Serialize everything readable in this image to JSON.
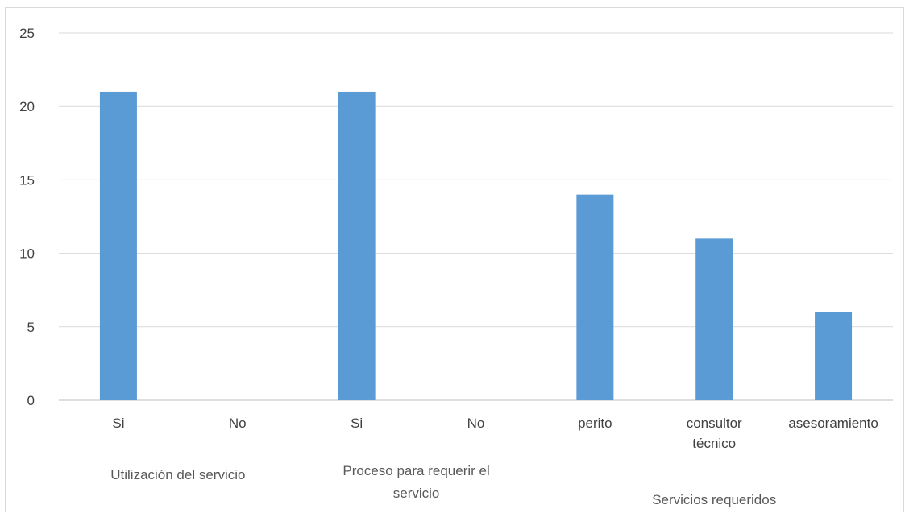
{
  "chart_data": {
    "type": "bar",
    "title": "",
    "xlabel": "",
    "ylabel": "",
    "ylim": [
      0,
      25
    ],
    "yticks": [
      0,
      5,
      10,
      15,
      20,
      25
    ],
    "grid": true,
    "legend": "none",
    "bar_color": "#5b9bd5",
    "categories": [
      "Si",
      "No",
      "Si",
      "No",
      "perito",
      "consultor técnico",
      "asesoramiento"
    ],
    "category_lines": [
      [
        "Si"
      ],
      [
        "No"
      ],
      [
        "Si"
      ],
      [
        "No"
      ],
      [
        "perito"
      ],
      [
        "consultor",
        "técnico"
      ],
      [
        "asesoramiento"
      ]
    ],
    "values": [
      21,
      0,
      21,
      0,
      14,
      11,
      6
    ],
    "groups": [
      {
        "label_lines": [
          "Utilización del servicio"
        ],
        "first": 0,
        "last": 1
      },
      {
        "label_lines": [
          "Proceso para requerir el",
          "servicio"
        ],
        "first": 2,
        "last": 3
      },
      {
        "label_lines": [
          "Servicios requeridos"
        ],
        "first": 4,
        "last": 6
      }
    ]
  }
}
